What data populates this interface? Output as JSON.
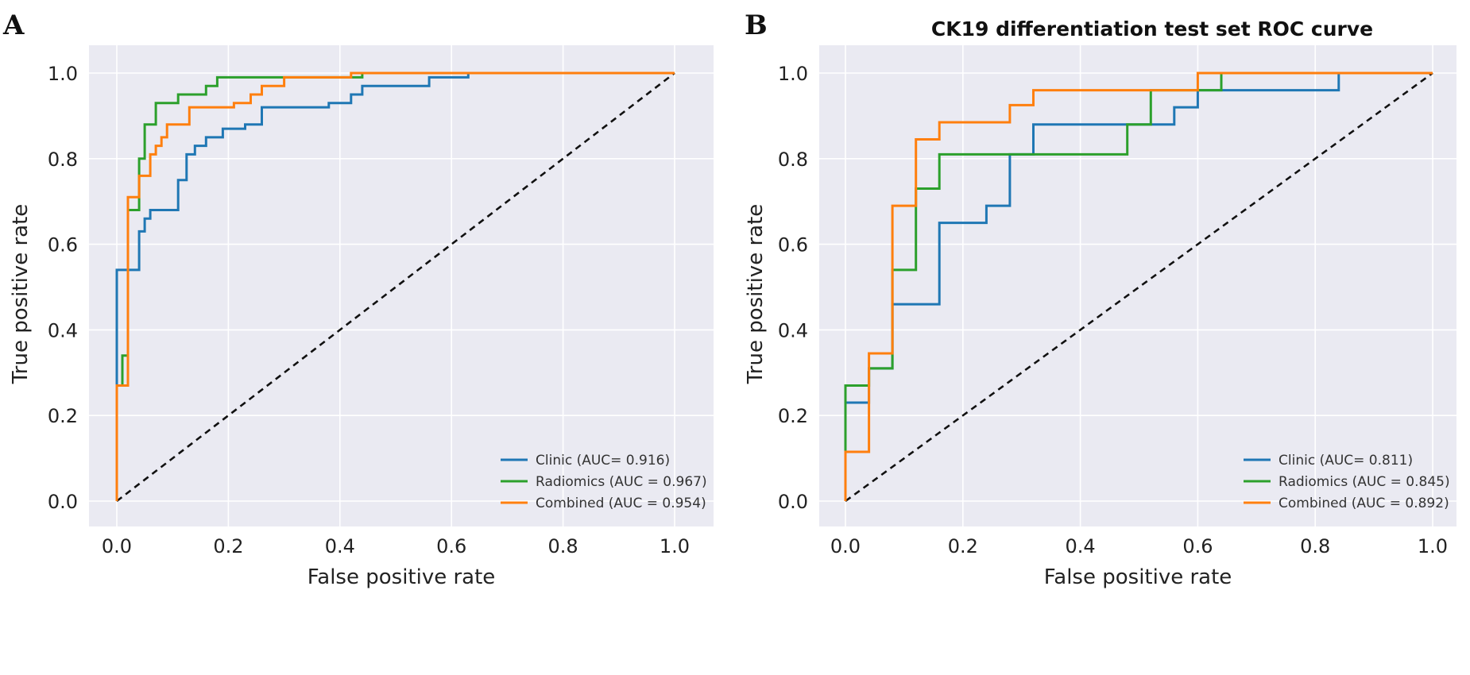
{
  "chart_data": [
    {
      "panel": "A",
      "type": "line",
      "title": "",
      "xlabel": "False positive rate",
      "ylabel": "True positive rate",
      "xlim": [
        0,
        1
      ],
      "ylim": [
        0,
        1
      ],
      "xticks": [
        "0.0",
        "0.2",
        "0.4",
        "0.6",
        "0.8",
        "1.0"
      ],
      "yticks": [
        "0.0",
        "0.2",
        "0.4",
        "0.6",
        "0.8",
        "1.0"
      ],
      "grid": true,
      "legend_position": "bottom-right",
      "series": [
        {
          "name": "Clinic (AUC= 0.916)",
          "color": "#1f77b4",
          "points": [
            [
              0,
              0
            ],
            [
              0,
              0.54
            ],
            [
              0.04,
              0.54
            ],
            [
              0.04,
              0.63
            ],
            [
              0.05,
              0.63
            ],
            [
              0.05,
              0.66
            ],
            [
              0.06,
              0.66
            ],
            [
              0.06,
              0.68
            ],
            [
              0.11,
              0.68
            ],
            [
              0.11,
              0.75
            ],
            [
              0.125,
              0.75
            ],
            [
              0.125,
              0.81
            ],
            [
              0.14,
              0.81
            ],
            [
              0.14,
              0.83
            ],
            [
              0.16,
              0.83
            ],
            [
              0.16,
              0.85
            ],
            [
              0.19,
              0.85
            ],
            [
              0.19,
              0.87
            ],
            [
              0.23,
              0.87
            ],
            [
              0.23,
              0.88
            ],
            [
              0.26,
              0.88
            ],
            [
              0.26,
              0.92
            ],
            [
              0.38,
              0.92
            ],
            [
              0.38,
              0.93
            ],
            [
              0.42,
              0.93
            ],
            [
              0.42,
              0.95
            ],
            [
              0.44,
              0.95
            ],
            [
              0.44,
              0.97
            ],
            [
              0.56,
              0.97
            ],
            [
              0.56,
              0.99
            ],
            [
              0.63,
              0.99
            ],
            [
              0.63,
              1.0
            ],
            [
              1,
              1
            ]
          ]
        },
        {
          "name": "Radiomics (AUC = 0.967)",
          "color": "#2ca02c",
          "points": [
            [
              0,
              0
            ],
            [
              0,
              0.27
            ],
            [
              0.01,
              0.27
            ],
            [
              0.01,
              0.34
            ],
            [
              0.02,
              0.34
            ],
            [
              0.02,
              0.68
            ],
            [
              0.04,
              0.68
            ],
            [
              0.04,
              0.8
            ],
            [
              0.05,
              0.8
            ],
            [
              0.05,
              0.88
            ],
            [
              0.07,
              0.88
            ],
            [
              0.07,
              0.93
            ],
            [
              0.11,
              0.93
            ],
            [
              0.11,
              0.95
            ],
            [
              0.16,
              0.95
            ],
            [
              0.16,
              0.97
            ],
            [
              0.18,
              0.97
            ],
            [
              0.18,
              0.99
            ],
            [
              0.44,
              0.99
            ],
            [
              0.44,
              1.0
            ],
            [
              1,
              1
            ]
          ]
        },
        {
          "name": "Combined (AUC = 0.954)",
          "color": "#ff7f0e",
          "points": [
            [
              0,
              0
            ],
            [
              0,
              0.27
            ],
            [
              0.02,
              0.27
            ],
            [
              0.02,
              0.71
            ],
            [
              0.04,
              0.71
            ],
            [
              0.04,
              0.76
            ],
            [
              0.06,
              0.76
            ],
            [
              0.06,
              0.81
            ],
            [
              0.07,
              0.81
            ],
            [
              0.07,
              0.83
            ],
            [
              0.08,
              0.83
            ],
            [
              0.08,
              0.85
            ],
            [
              0.09,
              0.85
            ],
            [
              0.09,
              0.88
            ],
            [
              0.13,
              0.88
            ],
            [
              0.13,
              0.92
            ],
            [
              0.21,
              0.92
            ],
            [
              0.21,
              0.93
            ],
            [
              0.24,
              0.93
            ],
            [
              0.24,
              0.95
            ],
            [
              0.26,
              0.95
            ],
            [
              0.26,
              0.97
            ],
            [
              0.3,
              0.97
            ],
            [
              0.3,
              0.99
            ],
            [
              0.42,
              0.99
            ],
            [
              0.42,
              1.0
            ],
            [
              1,
              1
            ]
          ]
        }
      ],
      "diagonal": true
    },
    {
      "panel": "B",
      "type": "line",
      "title": "CK19 differentiation test set ROC curve",
      "xlabel": "False positive rate",
      "ylabel": "True positive rate",
      "xlim": [
        0,
        1
      ],
      "ylim": [
        0,
        1
      ],
      "xticks": [
        "0.0",
        "0.2",
        "0.4",
        "0.6",
        "0.8",
        "1.0"
      ],
      "yticks": [
        "0.0",
        "0.2",
        "0.4",
        "0.6",
        "0.8",
        "1.0"
      ],
      "grid": true,
      "legend_position": "bottom-right",
      "series": [
        {
          "name": "Clinic (AUC= 0.811)",
          "color": "#1f77b4",
          "points": [
            [
              0,
              0
            ],
            [
              0,
              0.23
            ],
            [
              0.04,
              0.23
            ],
            [
              0.04,
              0.31
            ],
            [
              0.08,
              0.31
            ],
            [
              0.08,
              0.46
            ],
            [
              0.16,
              0.46
            ],
            [
              0.16,
              0.65
            ],
            [
              0.24,
              0.65
            ],
            [
              0.24,
              0.69
            ],
            [
              0.28,
              0.69
            ],
            [
              0.28,
              0.81
            ],
            [
              0.32,
              0.81
            ],
            [
              0.32,
              0.88
            ],
            [
              0.56,
              0.88
            ],
            [
              0.56,
              0.92
            ],
            [
              0.6,
              0.92
            ],
            [
              0.6,
              0.96
            ],
            [
              0.84,
              0.96
            ],
            [
              0.84,
              1.0
            ],
            [
              1,
              1
            ]
          ]
        },
        {
          "name": "Radiomics (AUC = 0.845)",
          "color": "#2ca02c",
          "points": [
            [
              0,
              0
            ],
            [
              0,
              0.27
            ],
            [
              0.04,
              0.27
            ],
            [
              0.04,
              0.31
            ],
            [
              0.08,
              0.31
            ],
            [
              0.08,
              0.54
            ],
            [
              0.12,
              0.54
            ],
            [
              0.12,
              0.73
            ],
            [
              0.16,
              0.73
            ],
            [
              0.16,
              0.81
            ],
            [
              0.48,
              0.81
            ],
            [
              0.48,
              0.88
            ],
            [
              0.52,
              0.88
            ],
            [
              0.52,
              0.96
            ],
            [
              0.64,
              0.96
            ],
            [
              0.64,
              1.0
            ],
            [
              1,
              1
            ]
          ]
        },
        {
          "name": "Combined (AUC = 0.892)",
          "color": "#ff7f0e",
          "points": [
            [
              0,
              0
            ],
            [
              0,
              0.115
            ],
            [
              0.04,
              0.115
            ],
            [
              0.04,
              0.345
            ],
            [
              0.08,
              0.345
            ],
            [
              0.08,
              0.69
            ],
            [
              0.12,
              0.69
            ],
            [
              0.12,
              0.845
            ],
            [
              0.16,
              0.845
            ],
            [
              0.16,
              0.885
            ],
            [
              0.28,
              0.885
            ],
            [
              0.28,
              0.925
            ],
            [
              0.32,
              0.925
            ],
            [
              0.32,
              0.96
            ],
            [
              0.6,
              0.96
            ],
            [
              0.6,
              1.0
            ],
            [
              1,
              1
            ]
          ]
        }
      ],
      "diagonal": true
    }
  ]
}
